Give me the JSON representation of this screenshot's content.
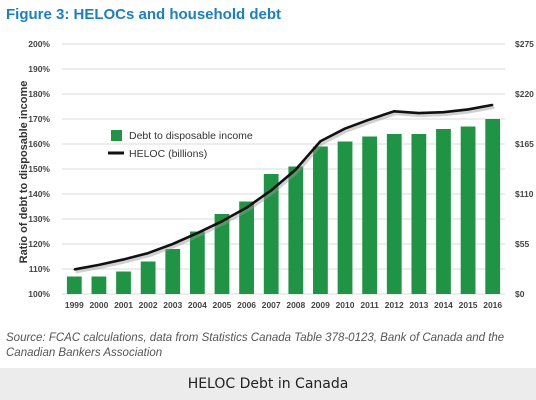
{
  "figure": {
    "title": "Figure 3: HELOCs and household debt",
    "source": "Source: FCAC calculations, data from Statistics Canada Table 378-0123, Bank of Canada and the Canadian Bankers Association"
  },
  "caption": "HELOC Debt in Canada",
  "colors": {
    "title": "#1b7fc2",
    "bar": "#1e9444",
    "line": "#111111",
    "grid": "#cfcfcf",
    "axis_text": "#444444"
  },
  "chart_data": {
    "type": "bar",
    "title": "Figure 3: HELOCs and household debt",
    "xlabel": "",
    "ylabel": "Ratio of debt to disposable income",
    "y2label": "",
    "categories": [
      "1999",
      "2000",
      "2001",
      "2002",
      "2003",
      "2004",
      "2005",
      "2006",
      "2007",
      "2008",
      "2009",
      "2010",
      "2011",
      "2012",
      "2013",
      "2014",
      "2015",
      "2016"
    ],
    "series": [
      {
        "name": "Debt to disposable income",
        "type": "bar",
        "axis": "left",
        "values": [
          107,
          107,
          109,
          113,
          118,
          125,
          132,
          137,
          148,
          151,
          159,
          161,
          163,
          164,
          164,
          166,
          167,
          170
        ]
      },
      {
        "name": "HELOC (billions)",
        "type": "line",
        "axis": "right",
        "values": [
          27,
          32,
          38,
          45,
          55,
          67,
          80,
          95,
          114,
          137,
          168,
          182,
          192,
          201,
          199,
          200,
          203,
          208
        ]
      }
    ],
    "ylim": [
      100,
      200
    ],
    "y_ticks": [
      "100%",
      "110%",
      "120%",
      "130%",
      "140%",
      "150%",
      "160%",
      "170%",
      "180%",
      "190%",
      "200%"
    ],
    "y2lim": [
      0,
      275
    ],
    "y2_ticks": [
      "$0",
      "$55",
      "$110",
      "$165",
      "$220",
      "$275"
    ],
    "grid": true,
    "legend_position": "center-left"
  }
}
